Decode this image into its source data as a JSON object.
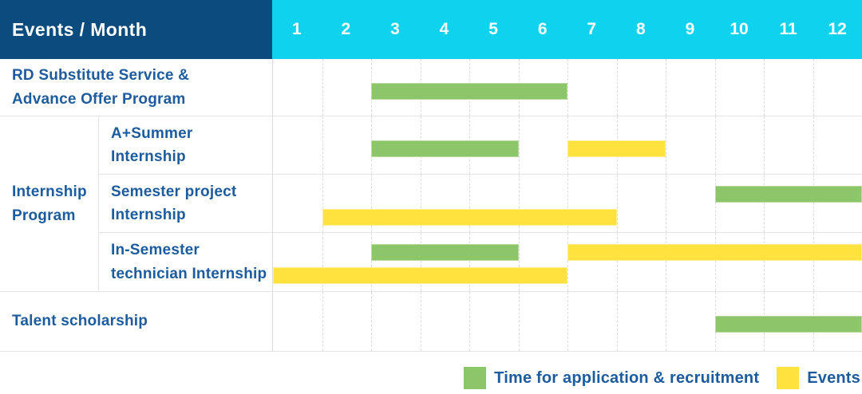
{
  "header": {
    "title": "Events / Month",
    "months": [
      "1",
      "2",
      "3",
      "4",
      "5",
      "6",
      "7",
      "8",
      "9",
      "10",
      "11",
      "12"
    ]
  },
  "group": {
    "label": "Internship\nProgram"
  },
  "rows": [
    {
      "label": "RD Substitute Service &\nAdvance Offer Program",
      "bars": [
        {
          "kind": "application",
          "start": 3,
          "end": 6,
          "lane": "mid"
        }
      ]
    },
    {
      "label": "A+Summer\nInternship",
      "bars": [
        {
          "kind": "application",
          "start": 3,
          "end": 5,
          "lane": "mid"
        },
        {
          "kind": "event",
          "start": 7,
          "end": 8,
          "lane": "mid"
        }
      ]
    },
    {
      "label": "Semester project\nInternship",
      "bars": [
        {
          "kind": "application",
          "start": 10,
          "end": 12,
          "lane": "top"
        },
        {
          "kind": "event",
          "start": 2,
          "end": 7,
          "lane": "bottom"
        }
      ]
    },
    {
      "label": "In-Semester\ntechnician Internship",
      "bars": [
        {
          "kind": "application",
          "start": 3,
          "end": 5,
          "lane": "top"
        },
        {
          "kind": "event",
          "start": 7,
          "end": 12,
          "lane": "top"
        },
        {
          "kind": "event",
          "start": 1,
          "end": 6,
          "lane": "bottom"
        }
      ]
    },
    {
      "label": "Talent scholarship",
      "bars": [
        {
          "kind": "application",
          "start": 10,
          "end": 12,
          "lane": "mid"
        }
      ]
    }
  ],
  "legend": [
    {
      "label": "Time for application & recruitment",
      "kind": "application",
      "color": "#8cc56a"
    },
    {
      "label": "Events",
      "kind": "event",
      "color": "#ffe23e"
    }
  ],
  "colors": {
    "navy": "#0c4b7e",
    "cyan": "#0fd2ef",
    "blue": "#1c5c9e",
    "application_green": "#8cc56a",
    "event_yellow": "#ffe23e"
  },
  "chart_data": {
    "type": "table",
    "subtype": "gantt-schedule",
    "title": "Events / Month",
    "x_axis": {
      "label": "Month",
      "ticks": [
        1,
        2,
        3,
        4,
        5,
        6,
        7,
        8,
        9,
        10,
        11,
        12
      ],
      "range": [
        1,
        12
      ]
    },
    "grid": true,
    "legend_position": "bottom-right",
    "legend": [
      {
        "label": "Time for application & recruitment",
        "color": "#8cc56a"
      },
      {
        "label": "Events",
        "color": "#ffe23e"
      }
    ],
    "tasks": [
      {
        "group": null,
        "name": "RD Substitute Service & Advance Offer Program",
        "application_recruitment_months": [
          [
            3,
            6
          ]
        ],
        "event_months": []
      },
      {
        "group": "Internship Program",
        "name": "A+Summer Internship",
        "application_recruitment_months": [
          [
            3,
            5
          ]
        ],
        "event_months": [
          [
            7,
            8
          ]
        ]
      },
      {
        "group": "Internship Program",
        "name": "Semester project Internship",
        "application_recruitment_months": [
          [
            10,
            12
          ]
        ],
        "event_months": [
          [
            2,
            7
          ]
        ]
      },
      {
        "group": "Internship Program",
        "name": "In-Semester technician Internship",
        "application_recruitment_months": [
          [
            3,
            5
          ]
        ],
        "event_months": [
          [
            1,
            6
          ],
          [
            7,
            12
          ]
        ]
      },
      {
        "group": null,
        "name": "Talent scholarship",
        "application_recruitment_months": [
          [
            10,
            12
          ]
        ],
        "event_months": []
      }
    ]
  }
}
